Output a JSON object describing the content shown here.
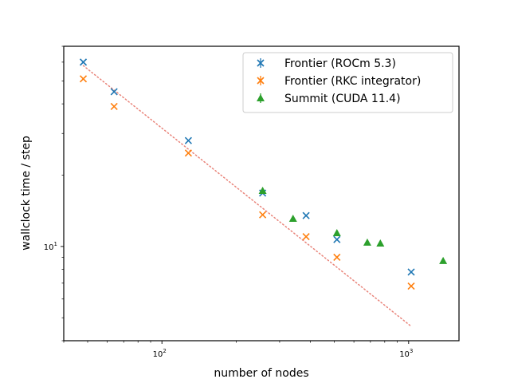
{
  "chart_data": {
    "type": "scatter",
    "title": "",
    "xlabel": "number of nodes",
    "ylabel": "wallclock time / step",
    "xscale": "log",
    "yscale": "log",
    "xlim": [
      40,
      1600
    ],
    "ylim": [
      4.0,
      70
    ],
    "grid": false,
    "legend_position": "top-right",
    "x_ticks": [
      {
        "value": 100,
        "base": "10",
        "exp": "2"
      },
      {
        "value": 1000,
        "base": "10",
        "exp": "3"
      }
    ],
    "y_ticks": [
      {
        "value": 10,
        "base": "10",
        "exp": "1"
      }
    ],
    "series": [
      {
        "name": "Frontier (ROCm 5.3)",
        "marker": "x",
        "color": "#1f77b4",
        "points": [
          [
            48,
            60
          ],
          [
            64,
            45
          ],
          [
            128,
            28
          ],
          [
            256,
            16.8
          ],
          [
            384,
            13.5
          ],
          [
            512,
            10.7
          ],
          [
            1024,
            7.8
          ]
        ]
      },
      {
        "name": "Frontier (RKC integrator)",
        "marker": "x",
        "color": "#ff7f0e",
        "points": [
          [
            48,
            51
          ],
          [
            64,
            39
          ],
          [
            128,
            24.8
          ],
          [
            256,
            13.6
          ],
          [
            384,
            11.0
          ],
          [
            512,
            9.0
          ],
          [
            1024,
            6.8
          ]
        ]
      },
      {
        "name": "Summit (CUDA 11.4)",
        "marker": "triangle",
        "color": "#2ca02c",
        "points": [
          [
            256,
            17.2
          ],
          [
            340,
            13.1
          ],
          [
            512,
            11.4
          ],
          [
            680,
            10.4
          ],
          [
            768,
            10.3
          ],
          [
            1380,
            8.7
          ]
        ]
      }
    ],
    "reference_line": {
      "color": "#e9847a",
      "style": "dotted",
      "points": [
        [
          48,
          58
        ],
        [
          1024,
          4.6
        ]
      ]
    }
  }
}
